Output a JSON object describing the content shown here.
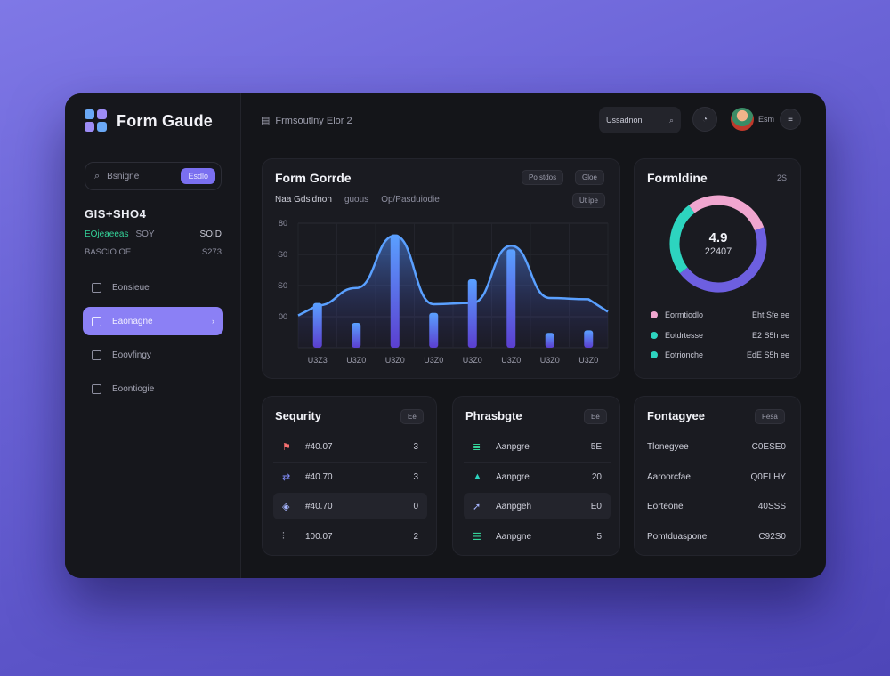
{
  "app": {
    "title": "Form Gaude",
    "breadcrumb": "Frmsoutlny Elor 2"
  },
  "colors": {
    "accent": "#8b80f5",
    "teal": "#2dd4bf",
    "pink": "#f0a6cf",
    "violet": "#6d5fe0",
    "blue": "#4f8ff7"
  },
  "sidebar": {
    "search_placeholder": "Bsnigne",
    "search_button": "Esdlo",
    "stat_title": "GIS+SHO4",
    "stat_green": "EOjeaeeas",
    "stat_mid": "SOY",
    "stat_right": "SOID",
    "stat_sub_left": "BASCIO OE",
    "stat_sub_right": "S273",
    "nav": [
      {
        "label": "Eonsieue",
        "icon": "square-icon",
        "active": false
      },
      {
        "label": "Eaonagne",
        "icon": "square-icon",
        "active": true
      },
      {
        "label": "Eoovfingy",
        "icon": "square-icon",
        "active": false
      },
      {
        "label": "Eoontiogie",
        "icon": "square-icon",
        "active": false
      }
    ]
  },
  "topbar": {
    "search_text": "Ussadnon",
    "search_icon": "search-icon",
    "bell_icon": "bell-icon",
    "user_name": "Esm",
    "menu_icon": "menu-icon"
  },
  "chart_card": {
    "title": "Form Gorrde",
    "pill1": "Po stdos",
    "pill2": "Gloe",
    "legend": [
      "Naa Gdsidnon",
      "guous",
      "Op/Pasduiodie"
    ],
    "pill3": "Ut ipe"
  },
  "chart_data": {
    "type": "bar",
    "categories": [
      "U3Z3",
      "U3Z0",
      "U3Z0",
      "U3Z0",
      "U3Z0",
      "U3Z0",
      "U3Z0",
      "U3Z0"
    ],
    "series": [
      {
        "values": [
          36,
          20,
          91,
          28,
          55,
          79,
          12,
          14
        ]
      },
      {
        "values": [
          34,
          48,
          90,
          35,
          36,
          82,
          40,
          39
        ]
      }
    ],
    "ytick_labels": [
      "",
      "00",
      "S0",
      "S0",
      "80"
    ],
    "ylim": [
      0,
      100
    ],
    "grid": true
  },
  "donut_card": {
    "title": "Formldine",
    "corner": "2S",
    "center_value": "4.9",
    "center_sub": "22407",
    "segments": [
      {
        "label": "Eormtiodlo",
        "value": "Eht Sfe ee",
        "color": "#f0a6cf",
        "share": 30
      },
      {
        "label": "Eotdrtesse",
        "value": "E2 S5h ee",
        "color": "#2dd4bf",
        "share": 25
      },
      {
        "label": "Eotrionche",
        "value": "EdE S5h ee",
        "color": "#6d5fe0",
        "share": 45
      }
    ]
  },
  "security_card": {
    "title": "Sequrity",
    "pill": "Ee",
    "rows": [
      {
        "icon": "flag-icon",
        "left": "#40.07",
        "right": "3"
      },
      {
        "icon": "arrows-icon",
        "left": "#40.70",
        "right": "3"
      },
      {
        "icon": "shield-icon",
        "left": "#40.70",
        "right": "0"
      },
      {
        "icon": "signal-icon",
        "left": "100.07",
        "right": "2"
      }
    ]
  },
  "phrase_card": {
    "title": "Phrasbgte",
    "pill": "Ee",
    "rows": [
      {
        "icon": "bars-icon",
        "left": "Aanpgre",
        "right": "5E"
      },
      {
        "icon": "triangle-icon",
        "left": "Aanpgre",
        "right": "20"
      },
      {
        "icon": "rocket-icon",
        "left": "Aanpgeh",
        "right": "E0"
      },
      {
        "icon": "stack-icon",
        "left": "Aanpgne",
        "right": "5"
      }
    ]
  },
  "fontage_card": {
    "title": "Fontagyee",
    "pill": "Fesa",
    "rows": [
      {
        "left": "Tlonegyee",
        "right": "C0ESE0"
      },
      {
        "left": "Aaroorcfae",
        "right": "Q0ELHY"
      },
      {
        "left": "Eorteone",
        "right": "40SSS"
      },
      {
        "left": "Pomtduaspone",
        "right": "C92S0"
      }
    ]
  }
}
